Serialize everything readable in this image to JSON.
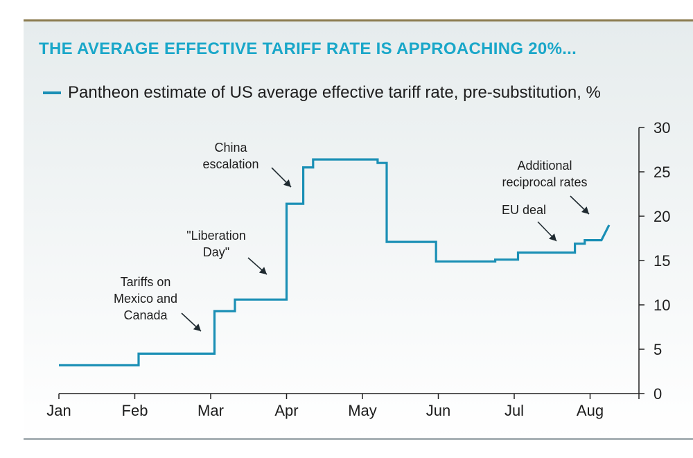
{
  "chart_data": {
    "type": "line",
    "title": "THE AVERAGE EFFECTIVE TARIFF RATE IS APPROACHING 20%...",
    "legend": [
      {
        "name": "Pantheon estimate of US average effective tariff rate, pre-substitution, %",
        "color": "#1a8fb5"
      }
    ],
    "x_ticks": [
      "Jan",
      "Feb",
      "Mar",
      "Apr",
      "May",
      "Jun",
      "Jul",
      "Aug"
    ],
    "y_ticks": [
      "0",
      "5",
      "10",
      "15",
      "20",
      "25",
      "30"
    ],
    "ylim": [
      0,
      30
    ],
    "xlim_months": [
      0,
      8
    ],
    "y_axis_side": "right",
    "series": [
      {
        "name": "Pantheon estimate of US average effective tariff rate, pre-substitution, %",
        "color": "#1a8fb5",
        "step_points": [
          [
            0.0,
            3.2
          ],
          [
            1.05,
            3.2
          ],
          [
            1.05,
            4.5
          ],
          [
            2.05,
            4.5
          ],
          [
            2.05,
            9.3
          ],
          [
            2.32,
            9.3
          ],
          [
            2.32,
            10.6
          ],
          [
            3.0,
            10.6
          ],
          [
            3.0,
            21.4
          ],
          [
            3.22,
            21.4
          ],
          [
            3.22,
            25.5
          ],
          [
            3.35,
            25.5
          ],
          [
            3.35,
            26.4
          ],
          [
            4.2,
            26.4
          ],
          [
            4.2,
            26.0
          ],
          [
            4.32,
            26.0
          ],
          [
            4.32,
            17.1
          ],
          [
            4.97,
            17.1
          ],
          [
            4.97,
            14.9
          ],
          [
            5.75,
            14.9
          ],
          [
            5.75,
            15.1
          ],
          [
            6.05,
            15.1
          ],
          [
            6.05,
            15.9
          ],
          [
            6.8,
            15.9
          ],
          [
            6.8,
            16.9
          ],
          [
            6.93,
            16.9
          ],
          [
            6.93,
            17.3
          ],
          [
            7.15,
            17.3
          ],
          [
            7.25,
            19.0
          ]
        ]
      }
    ],
    "annotations": [
      {
        "text": "Tariffs on\nMexico and\nCanada",
        "x": 2.05,
        "y": 7.2
      },
      {
        "text": "\"Liberation\nDay\"",
        "x": 2.95,
        "y": 13.5
      },
      {
        "text": "China\nescalation",
        "x": 3.12,
        "y": 23.5
      },
      {
        "text": "EU deal",
        "x": 6.6,
        "y": 17.0
      },
      {
        "text": "Additional\nreciprocal rates",
        "x": 7.25,
        "y": 20.5
      }
    ]
  }
}
